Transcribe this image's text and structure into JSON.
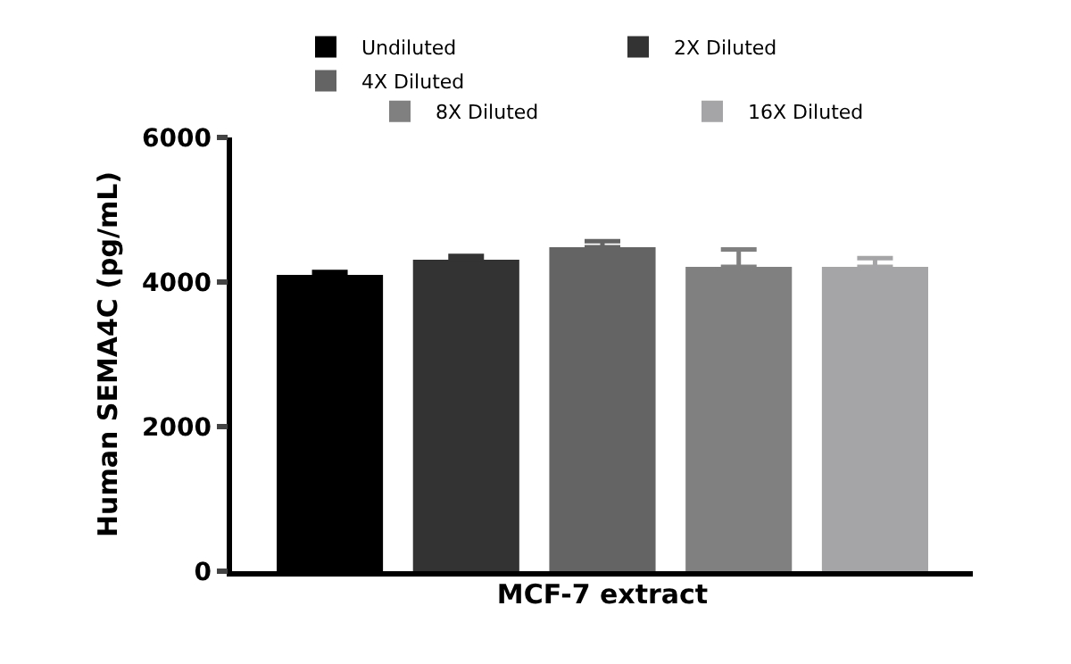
{
  "chart_data": {
    "type": "bar",
    "ylabel": "Human SEMA4C (pg/mL)",
    "xlabel": "MCF-7 extract",
    "categories": [
      null
    ],
    "series": [
      {
        "name": "Undiluted",
        "color": "#000000",
        "values": [
          4100
        ],
        "errors": [
          [
            4100,
            4140
          ]
        ]
      },
      {
        "name": "2X Diluted",
        "color": "#333333",
        "values": [
          4310
        ],
        "errors": [
          [
            4310,
            4360
          ]
        ]
      },
      {
        "name": "4X Diluted",
        "color": "#646464",
        "values": [
          4480
        ],
        "errors": [
          [
            4480,
            4565
          ]
        ]
      },
      {
        "name": "8X Diluted",
        "color": "#808080",
        "values": [
          4210
        ],
        "errors": [
          [
            4210,
            4450
          ]
        ]
      },
      {
        "name": "16X Diluted",
        "color": "#a5a5a8",
        "values": [
          4210
        ],
        "errors": [
          [
            4210,
            4330
          ]
        ]
      }
    ],
    "ylim": [
      0,
      6000
    ],
    "yticks": [
      0,
      2000,
      4000,
      6000
    ],
    "legend": "top"
  }
}
